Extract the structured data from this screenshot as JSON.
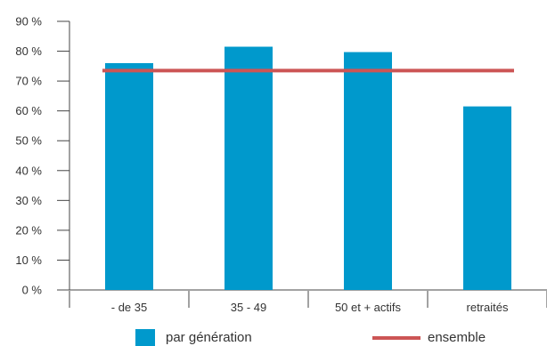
{
  "chart_data": {
    "type": "bar",
    "categories": [
      "- de 35",
      "35 - 49",
      "50 et + actifs",
      "retraités"
    ],
    "series": [
      {
        "name": "par génération",
        "type": "bar",
        "color": "#0099cc",
        "values": [
          76,
          81.5,
          79.7,
          61.5
        ]
      },
      {
        "name": "ensemble",
        "type": "line",
        "color": "#cc5555",
        "values": [
          73.5,
          73.5,
          73.5,
          73.5
        ]
      }
    ],
    "y_ticks": [
      "0 %",
      "10 %",
      "20 %",
      "30 %",
      "40 %",
      "50 %",
      "60 %",
      "70 %",
      "80 %",
      "90 %"
    ],
    "ylim": [
      0,
      90
    ],
    "legend_position": "bottom",
    "grid": false
  }
}
